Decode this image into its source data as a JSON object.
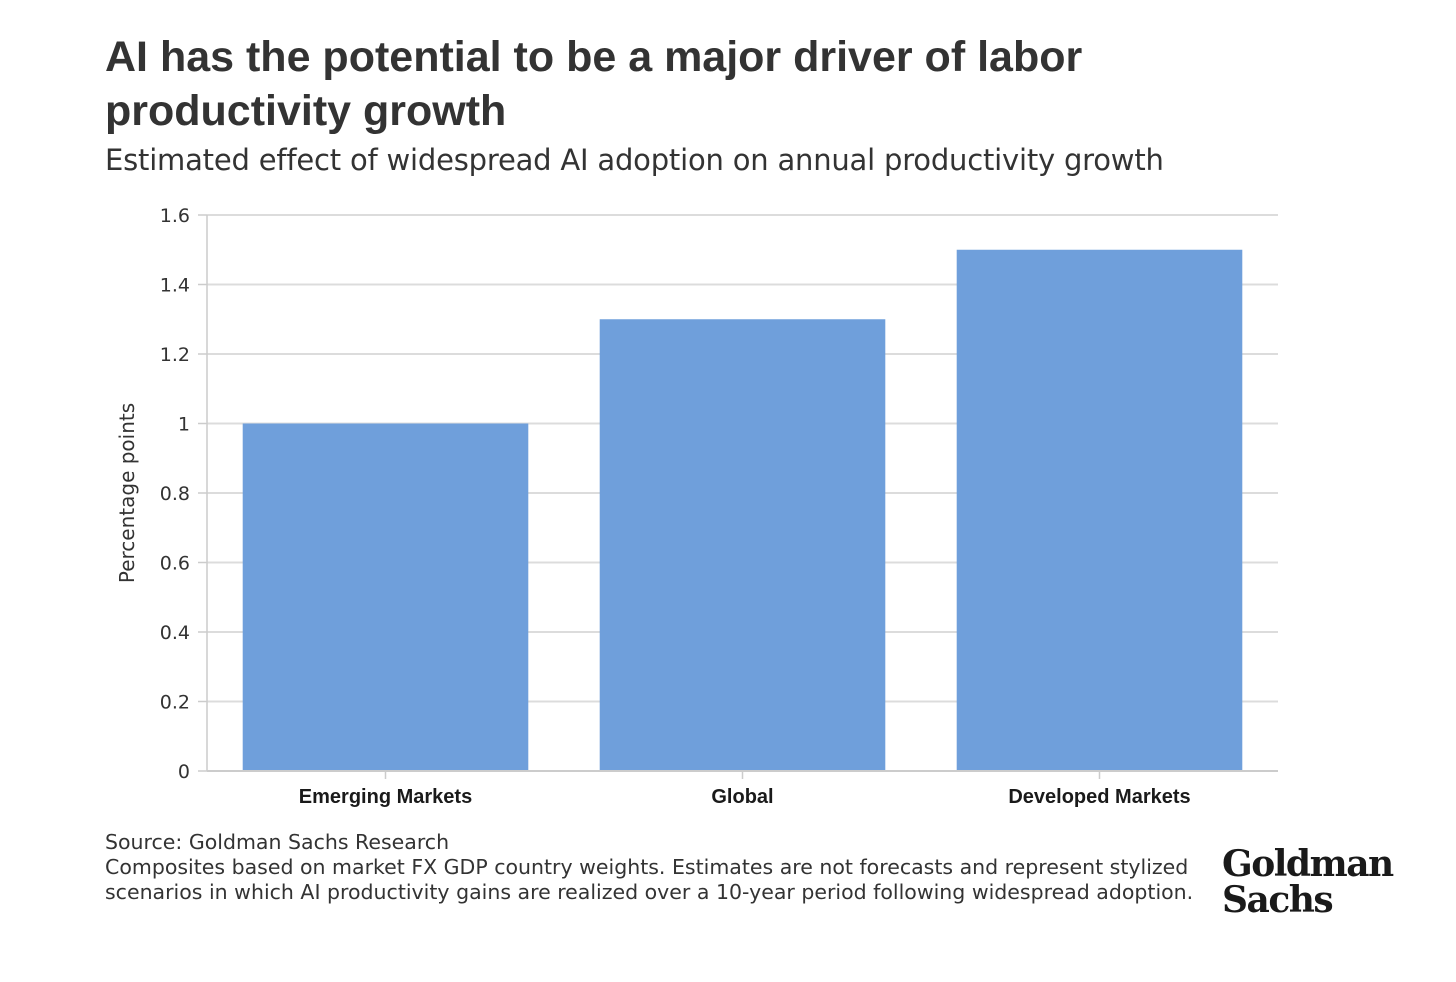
{
  "chart_data": {
    "type": "bar",
    "title": "AI has the potential to be a major driver of labor productivity growth",
    "subtitle": "Estimated effect of widespread AI adoption on annual productivity growth",
    "categories": [
      "Emerging Markets",
      "Global",
      "Developed Markets"
    ],
    "values": [
      1.0,
      1.3,
      1.5
    ],
    "ylabel": "Percentage points",
    "xlabel": "",
    "ylim": [
      0,
      1.6
    ],
    "yticks": [
      0,
      0.2,
      0.4,
      0.6,
      0.8,
      1,
      1.2,
      1.4,
      1.6
    ],
    "ytick_labels": [
      "0",
      "0.2",
      "0.4",
      "0.6",
      "0.8",
      "1",
      "1.2",
      "1.4",
      "1.6"
    ],
    "grid": true,
    "bar_color": "#6f9fdb"
  },
  "footer": {
    "source": "Source: Goldman Sachs Research",
    "note": "Composites based on market FX GDP country weights. Estimates are not forecasts and represent stylized scenarios in which AI productivity gains are realized over a 10-year period following widespread adoption."
  },
  "logo": {
    "line1": "Goldman",
    "line2": "Sachs"
  }
}
